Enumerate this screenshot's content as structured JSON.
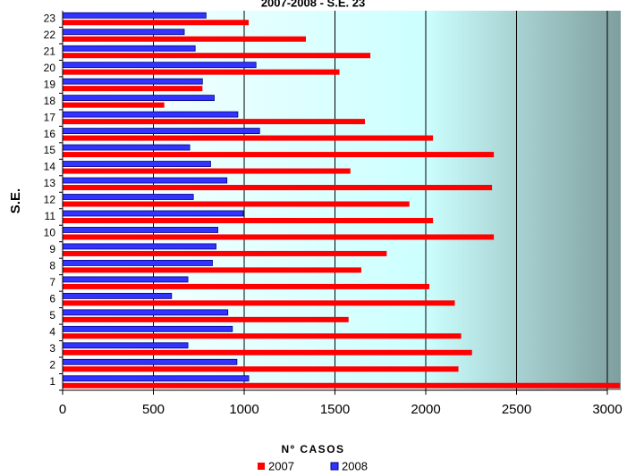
{
  "chart_data": {
    "type": "hbar",
    "title": "2007-2008 - S.E. 23",
    "x_label": "Nº CASOS",
    "y_label": "S.E.",
    "categories": [
      "1",
      "2",
      "3",
      "4",
      "5",
      "6",
      "7",
      "8",
      "9",
      "10",
      "11",
      "12",
      "13",
      "14",
      "15",
      "16",
      "17",
      "18",
      "19",
      "20",
      "21",
      "22",
      "23"
    ],
    "series": [
      {
        "name": "2007",
        "color": "#ff0000",
        "values": [
          3070,
          2180,
          2255,
          2195,
          1575,
          2160,
          2020,
          1645,
          1785,
          2375,
          2040,
          1910,
          2365,
          1585,
          2375,
          2040,
          1665,
          560,
          770,
          1525,
          1695,
          1340,
          1025
        ]
      },
      {
        "name": "2008",
        "color": "#3333ff",
        "values": [
          1025,
          960,
          690,
          935,
          910,
          600,
          690,
          825,
          845,
          855,
          995,
          720,
          905,
          815,
          700,
          1085,
          965,
          835,
          770,
          1065,
          730,
          670,
          790
        ]
      }
    ],
    "xlim": [
      0,
      3000
    ],
    "xticks": [
      0,
      500,
      1000,
      1500,
      2000,
      2500,
      3000
    ],
    "grid": true
  }
}
